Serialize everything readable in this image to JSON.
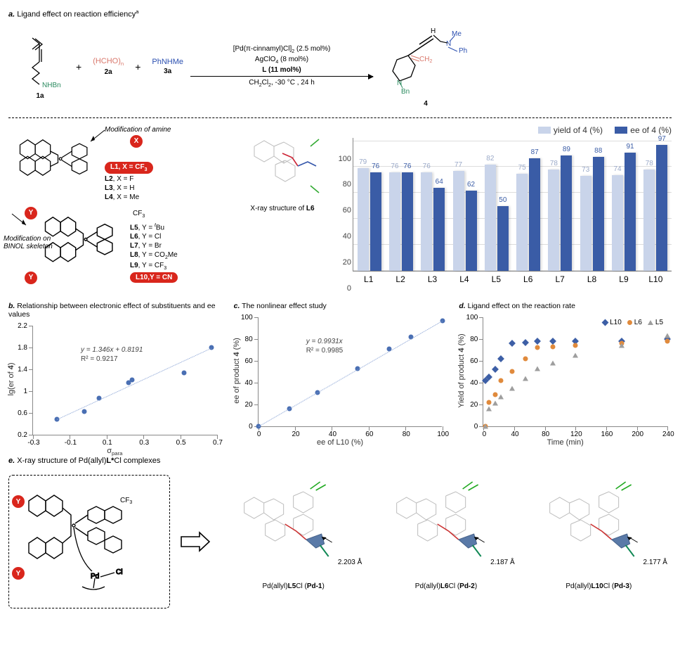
{
  "panelA": {
    "title_letter": "a.",
    "title_text": " Ligand effect on reaction efficiency",
    "title_sup": "a",
    "reagents": {
      "r1_sub": "NHBn",
      "r1_label": "1a",
      "r2_formula_pre": "(HCHO)",
      "r2_formula_sub": "n",
      "r2_label": "2a",
      "r3_formula": "PhNHMe",
      "r3_label": "3a",
      "plus": "+"
    },
    "arrow": {
      "line1_pre": "[Pd(π-cinnamyl)Cl]",
      "line1_sub": "2",
      "line1_post": " (2.5 mol%)",
      "line2_pre": "AgClO",
      "line2_sub": "4",
      "line2_post": " (8 mol%)",
      "line3": "L (11 mol%)",
      "below1_pre": "CH",
      "below1_sub1": "2",
      "below1_mid": "Cl",
      "below1_sub2": "2",
      "below1_post": ", -30 °C , 24 h"
    },
    "product": {
      "H": "H",
      "Me": "Me",
      "N": "N",
      "Ph": "Ph",
      "CH2": "CH",
      "CH2_sub": "2",
      "Bn": "Bn",
      "label": "4"
    },
    "mod_amine": "Modification of amine",
    "mod_binol": "Modification on\nBINOL skeleton",
    "X": "X",
    "Y": "Y",
    "L_list_top": [
      {
        "bold": "L1",
        "rest": ", X = CF",
        "sub": "3",
        "highlight": true
      },
      {
        "bold": "L2",
        "rest": ", X = F"
      },
      {
        "bold": "L3",
        "rest": ", X = H"
      },
      {
        "bold": "L4",
        "rest": ", X = Me"
      }
    ],
    "L_list_bot": [
      {
        "bold": "L5",
        "rest": ", Y = ",
        "sup": "t",
        "post": "Bu"
      },
      {
        "bold": "L6",
        "rest": ", Y = Cl"
      },
      {
        "bold": "L7",
        "rest": ", Y = Br"
      },
      {
        "bold": "L8",
        "rest": ", Y = CO",
        "sub": "2",
        "post": "Me"
      },
      {
        "bold": "L9",
        "rest": ", Y = CF",
        "sub": "3"
      },
      {
        "bold": "L10",
        "rest": ",Y = CN",
        "highlight": true
      }
    ],
    "xray_caption_pre": "X-ray structure of ",
    "xray_caption_bold": "L6",
    "cf3_label": "CF",
    "cf3_sub": "3"
  },
  "barChart": {
    "colors": {
      "yield": "#c9d4ea",
      "ee": "#3a5ca6",
      "yield_text": "#9aa9c8",
      "ee_text": "#3a5ca6"
    },
    "legend_yield": "yield of 4 (%)",
    "legend_ee": "ee of 4 (%)",
    "y_max": 100,
    "y_ticks": [
      0,
      20,
      40,
      60,
      80,
      100
    ],
    "categories": [
      "L1",
      "L2",
      "L3",
      "L4",
      "L5",
      "L6",
      "L7",
      "L8",
      "L9",
      "L10"
    ],
    "yield": [
      79,
      76,
      76,
      77,
      82,
      75,
      78,
      73,
      74,
      78
    ],
    "ee": [
      76,
      76,
      64,
      62,
      50,
      87,
      89,
      88,
      91,
      97
    ]
  },
  "panelB": {
    "title_letter": "b.",
    "title_text": " Relationship between electronic effect of substituents and ee values",
    "ylabel_pre": "lg(er of ",
    "ylabel_bold": "4",
    "ylabel_post": ")",
    "xlabel_pre": "σ",
    "xlabel_sub": "para",
    "x_ticks": [
      -0.3,
      -0.1,
      0.1,
      0.3,
      0.5,
      0.7
    ],
    "y_ticks": [
      0.2,
      0.6,
      1.0,
      1.4,
      1.8,
      2.2
    ],
    "xlim": [
      -0.3,
      0.7
    ],
    "ylim": [
      0.2,
      2.2
    ],
    "points": [
      {
        "x": -0.17,
        "y": 0.49
      },
      {
        "x": -0.02,
        "y": 0.63
      },
      {
        "x": 0.06,
        "y": 0.87
      },
      {
        "x": 0.22,
        "y": 1.16
      },
      {
        "x": 0.24,
        "y": 1.2
      },
      {
        "x": 0.52,
        "y": 1.33
      },
      {
        "x": 0.67,
        "y": 1.8
      }
    ],
    "eqn": "y = 1.346x + 0.8191",
    "r2": "R² = 0.9217",
    "point_color": "#4a6fb3",
    "line_color": "#7f9bd1"
  },
  "panelC": {
    "title_letter": "c.",
    "title_text": " The nonlinear effect study",
    "ylabel_pre": "ee of product ",
    "ylabel_bold": "4",
    "ylabel_post": " (%)",
    "xlabel": "ee of L10 (%)",
    "x_ticks": [
      0,
      20,
      40,
      60,
      80,
      100
    ],
    "y_ticks": [
      0,
      20,
      40,
      60,
      80,
      100
    ],
    "xlim": [
      0,
      100
    ],
    "ylim": [
      0,
      100
    ],
    "points": [
      {
        "x": 0,
        "y": 0
      },
      {
        "x": 17,
        "y": 16
      },
      {
        "x": 32,
        "y": 31
      },
      {
        "x": 54,
        "y": 53
      },
      {
        "x": 71,
        "y": 71
      },
      {
        "x": 83,
        "y": 82
      },
      {
        "x": 100,
        "y": 97
      }
    ],
    "eqn": "y = 0.9931x",
    "r2": "R² = 0.9985",
    "point_color": "#4a6fb3",
    "line_color": "#7f9bd1"
  },
  "panelD": {
    "title_letter": "d.",
    "title_text": " Ligand effect on the reaction rate",
    "ylabel_pre": "Yield of product ",
    "ylabel_bold": "4",
    "ylabel_post": " (%)",
    "xlabel": "Time  (min)",
    "x_ticks": [
      0,
      40,
      80,
      120,
      160,
      200,
      240
    ],
    "y_ticks": [
      0,
      20,
      40,
      60,
      80,
      100
    ],
    "xlim": [
      0,
      240
    ],
    "ylim": [
      0,
      100
    ],
    "legend": [
      {
        "name": "L10",
        "shape": "diamond",
        "color": "#3d5fa6"
      },
      {
        "name": "L6",
        "shape": "circle",
        "color": "#e08a3c"
      },
      {
        "name": "L5",
        "shape": "triangle",
        "color": "#9e9e9e"
      }
    ],
    "series": {
      "L10": [
        {
          "x": 2,
          "y": 42
        },
        {
          "x": 7,
          "y": 45
        },
        {
          "x": 15,
          "y": 52
        },
        {
          "x": 23,
          "y": 62
        },
        {
          "x": 37,
          "y": 76
        },
        {
          "x": 55,
          "y": 77
        },
        {
          "x": 70,
          "y": 78
        },
        {
          "x": 90,
          "y": 78
        },
        {
          "x": 120,
          "y": 78
        },
        {
          "x": 180,
          "y": 78
        },
        {
          "x": 240,
          "y": 80
        }
      ],
      "L6": [
        {
          "x": 2,
          "y": 0
        },
        {
          "x": 7,
          "y": 22
        },
        {
          "x": 15,
          "y": 29
        },
        {
          "x": 23,
          "y": 42
        },
        {
          "x": 37,
          "y": 50
        },
        {
          "x": 55,
          "y": 62
        },
        {
          "x": 70,
          "y": 72
        },
        {
          "x": 90,
          "y": 73
        },
        {
          "x": 120,
          "y": 74
        },
        {
          "x": 180,
          "y": 76
        },
        {
          "x": 240,
          "y": 78
        }
      ],
      "L5": [
        {
          "x": 2,
          "y": 0
        },
        {
          "x": 7,
          "y": 16
        },
        {
          "x": 15,
          "y": 21
        },
        {
          "x": 23,
          "y": 27
        },
        {
          "x": 37,
          "y": 35
        },
        {
          "x": 55,
          "y": 44
        },
        {
          "x": 70,
          "y": 53
        },
        {
          "x": 90,
          "y": 58
        },
        {
          "x": 120,
          "y": 65
        },
        {
          "x": 180,
          "y": 74
        },
        {
          "x": 240,
          "y": 83
        }
      ]
    }
  },
  "panelE": {
    "title_letter": "e.",
    "title_text_pre": " X-ray structure of Pd(allyl)",
    "title_text_bold": "L*",
    "title_text_post": "Cl complexes",
    "pd_label": "Pd",
    "cl_label": "Cl",
    "items": [
      {
        "cap_pre": "Pd(allyl)",
        "cap_bold": "L5",
        "cap_mid": "Cl (",
        "cap_bold2": "Pd-1",
        "cap_post": ")",
        "dist": "2.203 Å"
      },
      {
        "cap_pre": "Pd(allyl)",
        "cap_bold": "L6",
        "cap_mid": "Cl (",
        "cap_bold2": "Pd-2",
        "cap_post": ")",
        "dist": "2.187 Å"
      },
      {
        "cap_pre": "Pd(allyl)",
        "cap_bold": "L10",
        "cap_mid": "Cl (",
        "cap_bold2": "Pd-3",
        "cap_post": ")",
        "dist": "2.177 Å"
      }
    ]
  }
}
